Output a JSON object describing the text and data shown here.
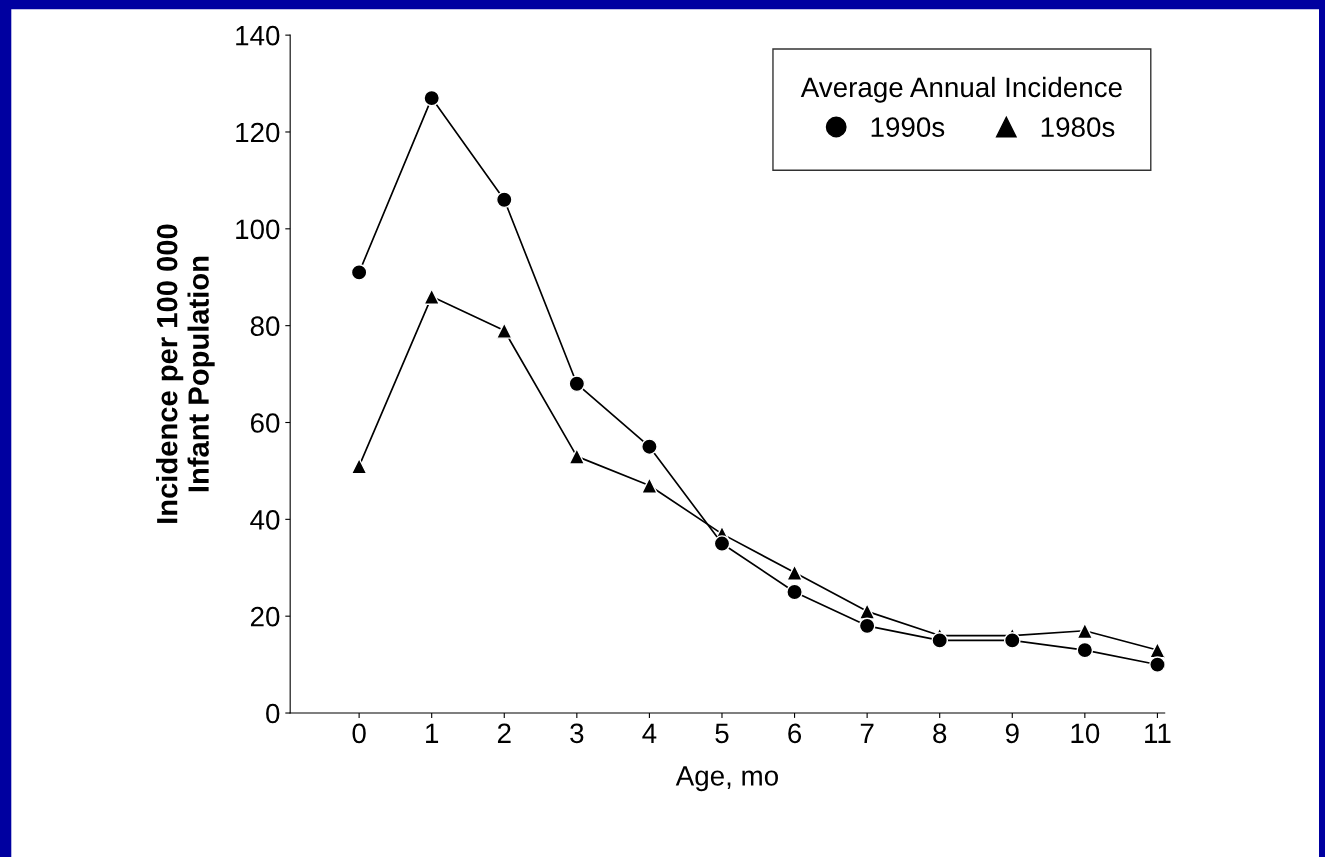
{
  "chart_data": {
    "type": "line",
    "xlabel": "Age, mo",
    "ylabel": "Incidence per 100 000\nInfant Population",
    "legend_title": "Average Annual Incidence",
    "legend": "top right",
    "x": [
      0,
      1,
      2,
      3,
      4,
      5,
      6,
      7,
      8,
      9,
      10,
      11
    ],
    "series": [
      {
        "name": "1990s",
        "color": "#000000",
        "marker": "circle",
        "values": [
          91,
          127,
          106,
          68,
          55,
          35,
          25,
          18,
          15,
          15,
          13,
          10
        ]
      },
      {
        "name": "1980s",
        "color": "#000000",
        "marker": "triangle",
        "values": [
          51,
          86,
          79,
          53,
          47,
          37,
          29,
          21,
          16,
          16,
          17,
          13
        ]
      }
    ],
    "xlim": [
      -0.95,
      11.1
    ],
    "xticks": [
      0,
      1,
      2,
      3,
      4,
      5,
      6,
      7,
      8,
      9,
      10,
      11
    ],
    "ylim": [
      0,
      140
    ],
    "yticks": [
      0,
      20,
      40,
      60,
      80,
      100,
      120,
      140
    ],
    "grid": false,
    "line_style": "solid"
  }
}
